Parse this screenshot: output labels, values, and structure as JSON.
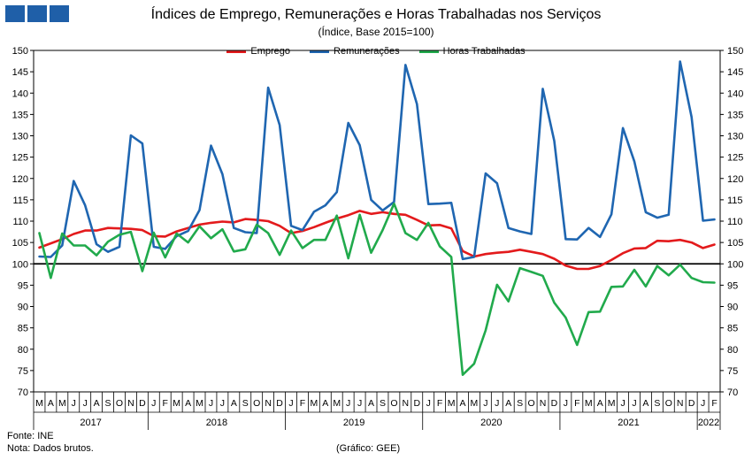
{
  "chart_data": {
    "type": "line",
    "title": "Índices de Emprego, Remunerações e Horas Trabalhadas nos Serviços",
    "subtitle": "(Índice, Base 2015=100)",
    "ylim": [
      70,
      150
    ],
    "y_ticks": [
      70,
      75,
      80,
      85,
      90,
      95,
      100,
      105,
      110,
      115,
      120,
      125,
      130,
      135,
      140,
      145,
      150
    ],
    "reference_line": 100,
    "legend_position": "top-center",
    "month_labels": [
      "M",
      "A",
      "M",
      "J",
      "J",
      "A",
      "S",
      "O",
      "N",
      "D",
      "J",
      "F",
      "M",
      "A",
      "M",
      "J",
      "J",
      "A",
      "S",
      "O",
      "N",
      "D",
      "J",
      "F",
      "M",
      "A",
      "M",
      "J",
      "J",
      "A",
      "S",
      "O",
      "N",
      "D",
      "J",
      "F",
      "M",
      "A",
      "M",
      "J",
      "J",
      "A",
      "S",
      "O",
      "N",
      "D",
      "J",
      "F",
      "M",
      "A",
      "M",
      "J",
      "J",
      "A",
      "S",
      "O",
      "N",
      "D",
      "J",
      "F"
    ],
    "years": [
      {
        "label": "2017",
        "start": 0,
        "count": 10
      },
      {
        "label": "2018",
        "start": 10,
        "count": 12
      },
      {
        "label": "2019",
        "start": 22,
        "count": 12
      },
      {
        "label": "2020",
        "start": 34,
        "count": 12
      },
      {
        "label": "2021",
        "start": 46,
        "count": 12
      },
      {
        "label": "2022",
        "start": 58,
        "count": 2
      }
    ],
    "series": [
      {
        "name": "Emprego",
        "color": "#e31a1c",
        "values": [
          103.8,
          104.8,
          105.8,
          107.0,
          107.8,
          107.8,
          108.4,
          108.3,
          108.2,
          107.9,
          106.5,
          106.4,
          107.6,
          108.4,
          109.2,
          109.6,
          109.9,
          109.7,
          110.5,
          110.3,
          110.0,
          108.9,
          107.2,
          107.7,
          108.6,
          109.6,
          110.6,
          111.4,
          112.4,
          111.7,
          112.1,
          111.7,
          111.5,
          110.3,
          109.0,
          109.1,
          108.3,
          103.0,
          101.7,
          102.3,
          102.6,
          102.8,
          103.3,
          102.8,
          102.3,
          101.2,
          99.6,
          98.8,
          98.8,
          99.5,
          100.9,
          102.5,
          103.6,
          103.7,
          105.4,
          105.3,
          105.6,
          105.0,
          103.7,
          104.5
        ]
      },
      {
        "name": "Remunerações",
        "color": "#1f66b1",
        "values": [
          101.7,
          101.6,
          104.3,
          119.4,
          113.7,
          104.6,
          102.8,
          104.0,
          130.1,
          128.2,
          104.0,
          103.5,
          106.5,
          107.7,
          112.6,
          127.7,
          121.0,
          108.4,
          107.4,
          107.2,
          141.3,
          132.5,
          108.9,
          107.9,
          112.2,
          113.7,
          116.8,
          133.0,
          127.8,
          115.0,
          112.5,
          114.5,
          146.6,
          137.4,
          114.0,
          114.1,
          114.3,
          101.1,
          101.6,
          121.2,
          118.9,
          108.4,
          107.6,
          107.0,
          141.0,
          128.8,
          105.8,
          105.7,
          108.4,
          106.3,
          111.6,
          131.8,
          124.0,
          112.1,
          110.8,
          111.5,
          147.4,
          134.4,
          110.1,
          110.4
        ]
      },
      {
        "name": "Horas Trabalhadas",
        "color": "#21aa4c",
        "values": [
          107.2,
          96.7,
          107.1,
          104.3,
          104.3,
          102.0,
          105.2,
          106.8,
          107.5,
          98.3,
          107.3,
          101.5,
          107.1,
          105.0,
          108.8,
          106.0,
          108.1,
          102.9,
          103.4,
          109.2,
          107.2,
          102.1,
          107.8,
          103.7,
          105.6,
          105.6,
          111.3,
          101.3,
          111.5,
          102.6,
          107.9,
          114.1,
          107.2,
          105.6,
          109.6,
          104.1,
          101.6,
          74.0,
          76.6,
          84.4,
          95.1,
          91.2,
          99.0,
          98.1,
          97.2,
          90.9,
          87.4,
          81.0,
          88.7,
          88.8,
          94.6,
          94.7,
          98.6,
          94.7,
          99.5,
          97.3,
          99.8,
          96.7,
          95.7,
          95.6
        ]
      }
    ]
  },
  "footer": {
    "source": "Fonte: INE",
    "note": "Nota: Dados brutos.",
    "credit": "(Gráfico: GEE)"
  }
}
